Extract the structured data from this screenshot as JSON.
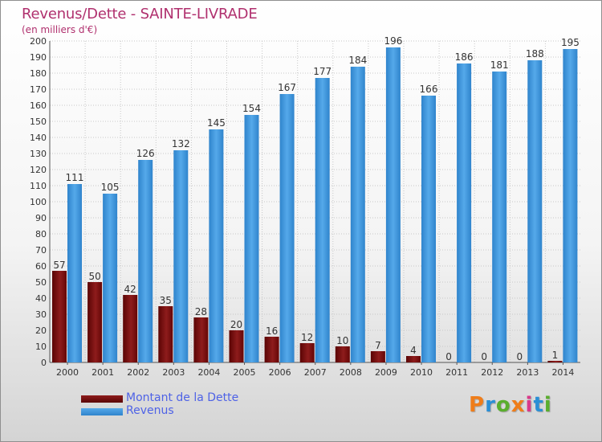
{
  "header": {
    "title": "Revenus/Dette - SAINTE-LIVRADE",
    "subtitle": "(en milliers d'€)"
  },
  "chart_data": {
    "type": "bar",
    "categories": [
      "2000",
      "2001",
      "2002",
      "2003",
      "2004",
      "2005",
      "2006",
      "2007",
      "2008",
      "2009",
      "2010",
      "2011",
      "2012",
      "2013",
      "2014"
    ],
    "series": [
      {
        "name": "Montant de la Dette",
        "color": "#7a1010",
        "values": [
          57,
          50,
          42,
          35,
          28,
          20,
          16,
          12,
          10,
          7,
          4,
          0,
          0,
          0,
          1
        ]
      },
      {
        "name": "Revenus",
        "color": "#3f97dd",
        "values": [
          111,
          105,
          126,
          132,
          145,
          154,
          167,
          177,
          184,
          196,
          166,
          186,
          181,
          188,
          195
        ]
      }
    ],
    "ylim": [
      0,
      200
    ],
    "yticks": [
      0,
      10,
      20,
      30,
      40,
      50,
      60,
      70,
      80,
      90,
      100,
      110,
      120,
      130,
      140,
      150,
      160,
      170,
      180,
      190,
      200
    ],
    "grid": true,
    "data_labels": true,
    "legend_position": "bottom-left"
  },
  "legend": [
    {
      "label": "Montant de la Dette",
      "color": "#7a1010"
    },
    {
      "label": "Revenus",
      "color": "#3f97dd"
    }
  ],
  "brand": {
    "letters": [
      "P",
      "r",
      "o",
      "x",
      "i",
      "t",
      "i"
    ],
    "colors": [
      "#ef7d1a",
      "#2a8fd6",
      "#5aae2e",
      "#ef7d1a",
      "#d93a8a",
      "#2a8fd6",
      "#5aae2e"
    ]
  }
}
